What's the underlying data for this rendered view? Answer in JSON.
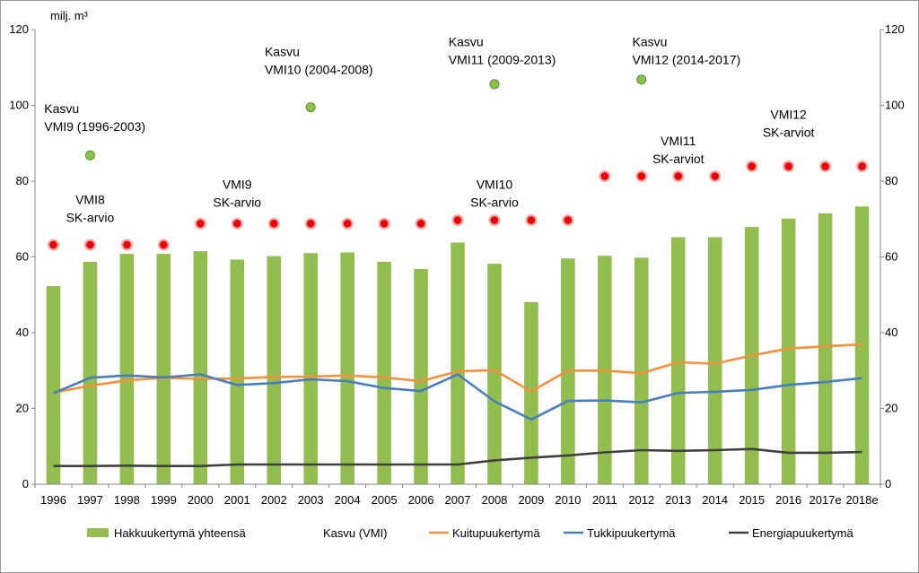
{
  "chart_data": {
    "type": "bar",
    "unit_label": "milj. m³",
    "categories": [
      "1996",
      "1997",
      "1998",
      "1999",
      "2000",
      "2001",
      "2002",
      "2003",
      "2004",
      "2005",
      "2006",
      "2007",
      "2008",
      "2009",
      "2010",
      "2011",
      "2012",
      "2013",
      "2014",
      "2015",
      "2016",
      "2017e",
      "2018e"
    ],
    "ylim": [
      0,
      120
    ],
    "yticks": [
      "0",
      "20",
      "40",
      "60",
      "80",
      "100",
      "120"
    ],
    "grid": false,
    "legend_position": "bottom",
    "colors": {
      "bars": "#92bd4f",
      "growth_points": "#8bc34a",
      "estimate_points": "#e8000b",
      "estimate_glow": "#f4a6a0",
      "kuitu": "#f0923f",
      "tukki": "#4a7ebb",
      "energia": "#404040"
    },
    "series": [
      {
        "name": "Hakkuukertymä yhteensä",
        "type": "bar",
        "values": [
          52.3,
          58.7,
          60.8,
          60.8,
          61.5,
          59.3,
          60.2,
          61.0,
          61.2,
          58.7,
          56.8,
          63.8,
          58.2,
          48.1,
          59.6,
          60.3,
          59.8,
          65.2,
          65.2,
          67.9,
          70.1,
          71.5,
          73.3
        ]
      },
      {
        "name": "Kasvu (VMI)",
        "type": "point",
        "points": [
          {
            "x": "1997",
            "y": 86.8
          },
          {
            "x": "2003",
            "y": 99.5
          },
          {
            "x": "2008",
            "y": 105.6
          },
          {
            "x": "2012",
            "y": 106.8
          }
        ]
      },
      {
        "name": "Kuitupuukertymä",
        "type": "line",
        "values": [
          24.2,
          26.0,
          27.4,
          28.1,
          27.8,
          27.9,
          28.3,
          28.4,
          28.7,
          28.2,
          27.2,
          29.8,
          30.1,
          24.5,
          30.0,
          30.0,
          29.3,
          32.2,
          31.8,
          34.0,
          35.8,
          36.4,
          36.9
        ]
      },
      {
        "name": "Tukkipuukertymä",
        "type": "line",
        "values": [
          24.0,
          28.1,
          28.7,
          28.2,
          29.0,
          26.2,
          26.7,
          27.7,
          27.2,
          25.4,
          24.6,
          29.0,
          21.9,
          17.1,
          22.0,
          22.1,
          21.6,
          24.1,
          24.4,
          24.9,
          26.2,
          27.0,
          28.0
        ]
      },
      {
        "name": "Energiapuukertymä",
        "type": "line",
        "values": [
          4.8,
          4.8,
          4.9,
          4.8,
          4.8,
          5.2,
          5.2,
          5.2,
          5.2,
          5.2,
          5.2,
          5.2,
          6.3,
          7.0,
          7.6,
          8.4,
          9.0,
          8.8,
          9.0,
          9.3,
          8.3,
          8.3,
          8.5
        ]
      }
    ],
    "estimate_points": [
      {
        "x": "1996",
        "y": 63.2
      },
      {
        "x": "1997",
        "y": 63.2
      },
      {
        "x": "1998",
        "y": 63.2
      },
      {
        "x": "1999",
        "y": 63.2
      },
      {
        "x": "2000",
        "y": 68.8
      },
      {
        "x": "2001",
        "y": 68.8
      },
      {
        "x": "2002",
        "y": 68.8
      },
      {
        "x": "2003",
        "y": 68.8
      },
      {
        "x": "2004",
        "y": 68.8
      },
      {
        "x": "2005",
        "y": 68.8
      },
      {
        "x": "2006",
        "y": 68.8
      },
      {
        "x": "2007",
        "y": 69.7
      },
      {
        "x": "2008",
        "y": 69.7
      },
      {
        "x": "2009",
        "y": 69.7
      },
      {
        "x": "2010",
        "y": 69.7
      },
      {
        "x": "2011",
        "y": 81.3
      },
      {
        "x": "2012",
        "y": 81.3
      },
      {
        "x": "2013",
        "y": 81.3
      },
      {
        "x": "2014",
        "y": 81.3
      },
      {
        "x": "2015",
        "y": 83.9
      },
      {
        "x": "2016",
        "y": 83.9
      },
      {
        "x": "2017e",
        "y": 83.9
      },
      {
        "x": "2018e",
        "y": 83.9
      }
    ],
    "annotations": [
      {
        "id": "kasvu-vmi9",
        "lines": [
          "Kasvu",
          "VMI9 (1996-2003)"
        ],
        "anchor_x": "1996",
        "anchor_y": 98,
        "align": "start"
      },
      {
        "id": "kasvu-vmi10",
        "lines": [
          "Kasvu",
          "VMI10 (2004-2008)"
        ],
        "anchor_x": "2002",
        "anchor_y": 113,
        "align": "start"
      },
      {
        "id": "kasvu-vmi11",
        "lines": [
          "Kasvu",
          "VMI11 (2009-2013)"
        ],
        "anchor_x": "2007",
        "anchor_y": 115.6,
        "align": "start"
      },
      {
        "id": "kasvu-vmi12",
        "lines": [
          "Kasvu",
          "VMI12 (2014-2017)"
        ],
        "anchor_x": "2012",
        "anchor_y": 115.6,
        "align": "start"
      },
      {
        "id": "vmi8-sk",
        "lines": [
          "VMI8",
          "SK-arvio"
        ],
        "anchor_x": "1997",
        "anchor_y": 74,
        "align": "middle"
      },
      {
        "id": "vmi9-sk",
        "lines": [
          "VMI9",
          "SK-arvio"
        ],
        "anchor_x": "2001",
        "anchor_y": 78,
        "align": "middle"
      },
      {
        "id": "vmi10-sk",
        "lines": [
          "VMI10",
          "SK-arvio"
        ],
        "anchor_x": "2008",
        "anchor_y": 78,
        "align": "middle"
      },
      {
        "id": "vmi11-sk",
        "lines": [
          "VMI11",
          "SK-arviot"
        ],
        "anchor_x": "2013",
        "anchor_y": 89.5,
        "align": "middle"
      },
      {
        "id": "vmi12-sk",
        "lines": [
          "VMI12",
          "SK-arviot"
        ],
        "anchor_x": "2016",
        "anchor_y": 96.5,
        "align": "middle"
      }
    ]
  }
}
